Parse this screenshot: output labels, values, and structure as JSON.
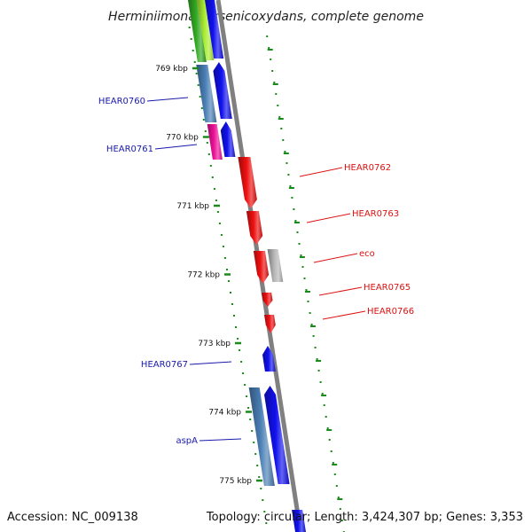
{
  "title": "Herminiimonas arsenicoxydans, complete genome",
  "footer": {
    "accession": "Accession: NC_009138",
    "topology": "Topology: circular; Length: 3,424,307 bp; Genes: 3,353"
  },
  "colors": {
    "backbone": "#808080",
    "tick": "#1a8a1a",
    "label_left": "#1a1aaa",
    "label_right": "#dd1111",
    "gene_blue": "#1111ee",
    "gene_steel": "#4a7fb5",
    "gene_red": "#ee1111",
    "gene_pink": "#ee1199",
    "gene_grey": "#b8b8b8",
    "gene_green": "#33aa22",
    "gene_lime": "#aaee33"
  },
  "ticks": [
    "769 kbp",
    "770 kbp",
    "771 kbp",
    "772 kbp",
    "773 kbp",
    "774 kbp",
    "775 kbp"
  ],
  "genes_left": [
    "HEAR0760",
    "HEAR0761",
    "HEAR0767",
    "aspA"
  ],
  "genes_right": [
    "HEAR0762",
    "HEAR0763",
    "eco",
    "HEAR0765",
    "HEAR0766"
  ]
}
